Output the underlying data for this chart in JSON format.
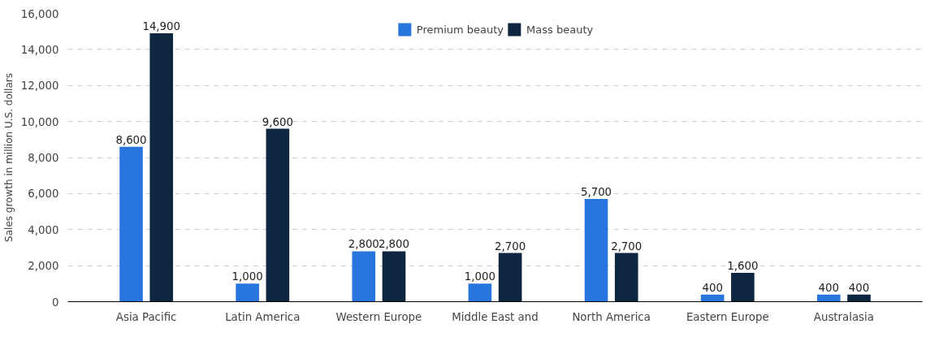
{
  "chart_data": {
    "type": "bar",
    "ylabel": "Sales growth in million U.S. dollars",
    "categories": [
      "Asia Pacific",
      "Latin America",
      "Western Europe",
      "Middle East and",
      "North America",
      "Eastern Europe",
      "Australasia"
    ],
    "series": [
      {
        "name": "Premium beauty",
        "color": "#2876dd",
        "values": [
          8600,
          1000,
          2800,
          1000,
          5700,
          400,
          400
        ],
        "value_labels": [
          "8,600",
          "1,000",
          "2,800",
          "1,000",
          "5,700",
          "400",
          "400"
        ]
      },
      {
        "name": "Mass beauty",
        "color": "#0f2640",
        "values": [
          14900,
          9600,
          2800,
          2700,
          2700,
          1600,
          400
        ],
        "value_labels": [
          "14,900",
          "9,600",
          "2,800",
          "2,700",
          "2,700",
          "1,600",
          "400"
        ]
      }
    ],
    "ylim": [
      0,
      16000
    ],
    "yticks": [
      0,
      {
        "value": 2000,
        "label": "2,000"
      },
      {
        "value": 4000,
        "label": "4,000"
      },
      {
        "value": 6000,
        "label": "6,000"
      },
      {
        "value": 8000,
        "label": "8,000"
      },
      {
        "value": 10000,
        "label": "10,000"
      },
      {
        "value": 12000,
        "label": "12,000"
      },
      {
        "value": 14000,
        "label": "14,000"
      },
      {
        "value": 16000,
        "label": "16,000"
      }
    ],
    "grid": "y",
    "legend": "top"
  }
}
